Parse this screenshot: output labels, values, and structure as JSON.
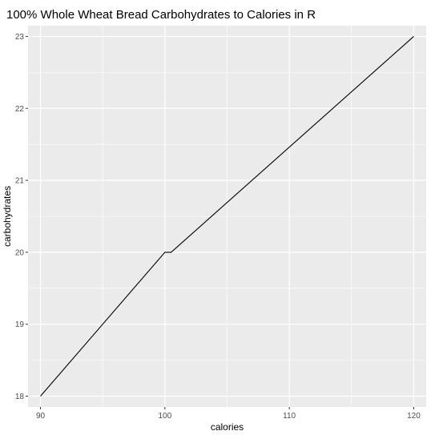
{
  "chart_data": {
    "type": "line",
    "title": "100% Whole Wheat Bread Carbohydrates to Calories in R",
    "xlabel": "calories",
    "ylabel": "carbohydrates",
    "xlim": [
      89,
      121
    ],
    "ylim": [
      17.85,
      23.15
    ],
    "x_ticks": [
      90,
      100,
      110,
      120
    ],
    "y_ticks": [
      18,
      19,
      20,
      21,
      22,
      23
    ],
    "x_minor_ticks": [
      95,
      105,
      115
    ],
    "y_minor_ticks": [
      18.5,
      19.5,
      20.5,
      21.5,
      22.5
    ],
    "grid": true,
    "background": "#EBEBEB",
    "line_color": "#000000",
    "series": [
      {
        "x": [
          90,
          100,
          100.5,
          120
        ],
        "y": [
          18,
          20,
          20,
          23
        ]
      }
    ]
  }
}
